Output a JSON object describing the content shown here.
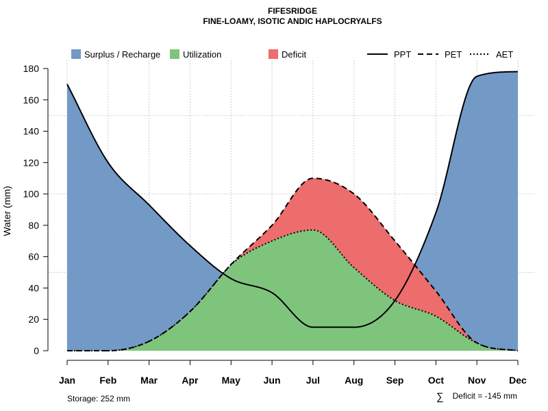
{
  "chart_data": {
    "type": "area",
    "title": "FIFESRIDGE",
    "subtitle": "FINE-LOAMY, ISOTIC ANDIC HAPLOCRYALFS",
    "xlabel": "",
    "ylabel": "Water (mm)",
    "ylim": [
      0,
      180
    ],
    "yticks": [
      0,
      20,
      40,
      60,
      80,
      100,
      120,
      140,
      160,
      180
    ],
    "categories": [
      "Jan",
      "Feb",
      "Mar",
      "Apr",
      "May",
      "Jun",
      "Jul",
      "Aug",
      "Sep",
      "Oct",
      "Nov",
      "Dec"
    ],
    "grid": true,
    "legend_position": "top",
    "series": [
      {
        "name": "PPT",
        "style": "solid",
        "values": [
          170,
          120,
          93,
          67,
          46,
          37,
          15,
          15,
          32,
          88,
          175,
          178
        ]
      },
      {
        "name": "PET",
        "style": "dashed",
        "values": [
          0,
          0,
          6,
          25,
          55,
          80,
          110,
          100,
          70,
          38,
          5,
          0
        ]
      },
      {
        "name": "AET",
        "style": "dotted",
        "values": [
          0,
          0,
          6,
          25,
          55,
          70,
          77,
          53,
          32,
          22,
          5,
          0
        ]
      }
    ],
    "areas": [
      {
        "name": "Surplus / Recharge",
        "color": "#7399c6"
      },
      {
        "name": "Utilization",
        "color": "#7fc47d"
      },
      {
        "name": "Deficit",
        "color": "#ed6c6c"
      }
    ],
    "annotations": {
      "storage": "Storage: 252 mm",
      "deficit_symbol": "∑",
      "deficit": "Deficit = -145 mm"
    }
  }
}
